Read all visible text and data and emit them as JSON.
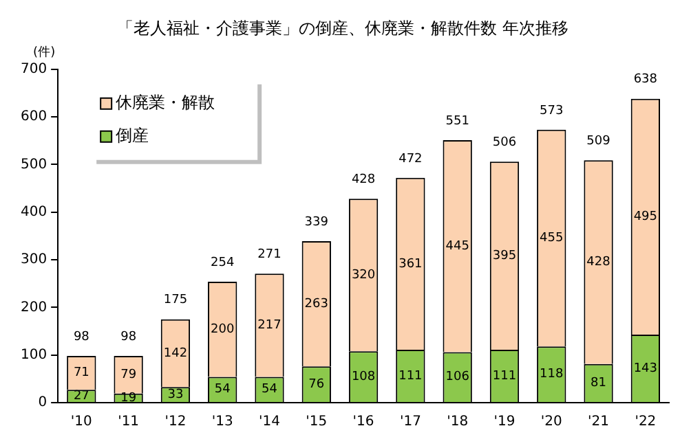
{
  "chart_data": {
    "type": "bar",
    "title": "「老人福祉・介護事業」の倒産、休廃業・解散件数 年次推移",
    "ylabel": "(件)",
    "categories": [
      "'10",
      "'11",
      "'12",
      "'13",
      "'14",
      "'15",
      "'16",
      "'17",
      "'18",
      "'19",
      "'20",
      "'21",
      "'22"
    ],
    "stacked": true,
    "series": [
      {
        "name": "倒産",
        "color": "#8cc84c",
        "values": [
          27,
          19,
          33,
          54,
          54,
          76,
          108,
          111,
          106,
          111,
          118,
          81,
          143
        ]
      },
      {
        "name": "休廃業・解散",
        "color": "#fcd2b0",
        "values": [
          71,
          79,
          142,
          200,
          217,
          263,
          320,
          361,
          445,
          395,
          455,
          428,
          495
        ]
      }
    ],
    "totals": [
      "98",
      "98",
      "175",
      "254",
      "271",
      "339",
      "428",
      "472",
      "551",
      "506",
      "573",
      "509",
      "638"
    ],
    "data_labels": true,
    "ylim": [
      0,
      700
    ],
    "yticks": [
      0,
      100,
      200,
      300,
      400,
      500,
      600,
      700
    ],
    "grid": false,
    "legend": "top left"
  }
}
